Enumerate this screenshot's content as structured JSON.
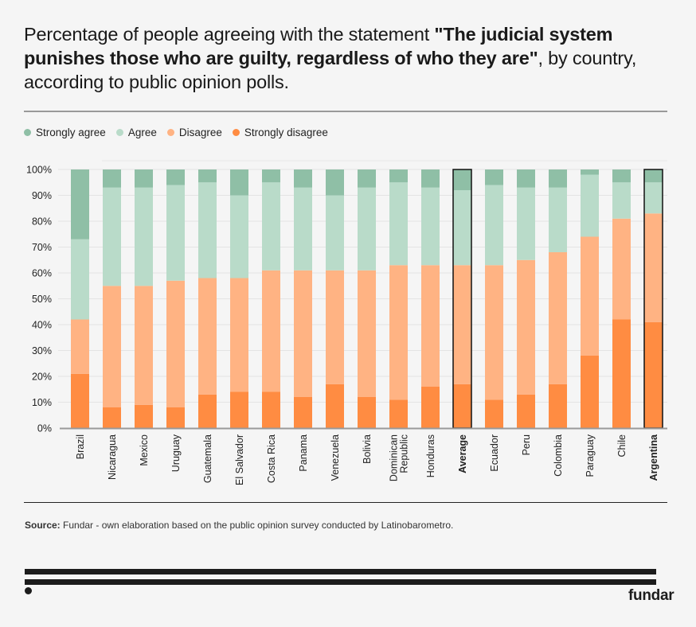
{
  "title": {
    "part1": "Percentage of people agreeing with the statement ",
    "bold": "\"The judicial system punishes those who are guilty, regardless of who they are\"",
    "part2": ", by country, according to public opinion polls."
  },
  "legend": [
    {
      "label": "Strongly agree",
      "color": "#8fbfa6"
    },
    {
      "label": "Agree",
      "color": "#b9dbc9"
    },
    {
      "label": "Disagree",
      "color": "#ffb383"
    },
    {
      "label": "Strongly disagree",
      "color": "#ff8c42"
    }
  ],
  "source": {
    "label": "Source:",
    "text": " Fundar - own elaboration based on the public opinion survey conducted by Latinobarometro."
  },
  "brand": "fundar",
  "chart_data": {
    "type": "bar",
    "stacked": true,
    "title": "Percentage of people agreeing with the statement \"The judicial system punishes those who are guilty, regardless of who they are\", by country, according to public opinion polls.",
    "xlabel": "",
    "ylabel": "",
    "ylim": [
      0,
      100
    ],
    "yticks": [
      "0%",
      "10%",
      "20%",
      "30%",
      "40%",
      "50%",
      "60%",
      "70%",
      "80%",
      "90%",
      "100%"
    ],
    "grid": true,
    "legend_position": "top-left",
    "categories": [
      "Brazil",
      "Nicaragua",
      "Mexico",
      "Uruguay",
      "Guatemala",
      "El Salvador",
      "Costa Rica",
      "Panama",
      "Venezuela",
      "Bolivia",
      "Dominican Republic",
      "Honduras",
      "Average",
      "Ecuador",
      "Peru",
      "Colombia",
      "Paraguay",
      "Chile",
      "Argentina"
    ],
    "highlighted": [
      "Average",
      "Argentina"
    ],
    "series": [
      {
        "name": "Strongly disagree",
        "color": "#ff8c42",
        "values": [
          21,
          8,
          9,
          8,
          13,
          14,
          14,
          12,
          17,
          12,
          11,
          16,
          17,
          11,
          13,
          17,
          28,
          42,
          41
        ]
      },
      {
        "name": "Disagree",
        "color": "#ffb383",
        "values": [
          21,
          47,
          46,
          49,
          45,
          44,
          47,
          49,
          44,
          49,
          52,
          47,
          46,
          52,
          52,
          51,
          46,
          39,
          42
        ]
      },
      {
        "name": "Agree",
        "color": "#b9dbc9",
        "values": [
          31,
          38,
          38,
          37,
          37,
          32,
          34,
          32,
          29,
          32,
          32,
          30,
          29,
          31,
          28,
          25,
          24,
          14,
          12
        ]
      },
      {
        "name": "Strongly agree",
        "color": "#8fbfa6",
        "values": [
          27,
          7,
          7,
          6,
          5,
          10,
          5,
          7,
          10,
          7,
          5,
          7,
          8,
          6,
          7,
          7,
          2,
          5,
          5
        ]
      }
    ]
  }
}
